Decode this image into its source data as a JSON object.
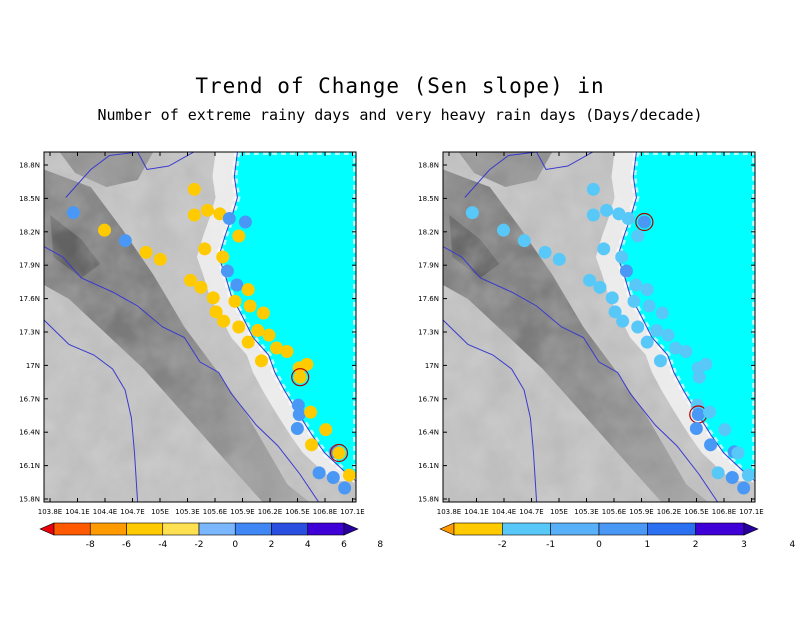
{
  "title": {
    "line1": "Trend of Change (Sen slope) in",
    "line2": "Number of extreme rainy days and very heavy rain days (Days/decade)"
  },
  "axes": {
    "x_ticks": [
      "103.8E",
      "104.1E",
      "104.4E",
      "104.7E",
      "105E",
      "105.3E",
      "105.6E",
      "105.9E",
      "106.2E",
      "106.5E",
      "106.8E",
      "107.1E"
    ],
    "y_ticks": [
      "18.8N",
      "18.5N",
      "18.2N",
      "17.9N",
      "17.6N",
      "17.3N",
      "17N",
      "16.7N",
      "16.4N",
      "16.1N",
      "15.8N"
    ],
    "lon_range": [
      103.8,
      107.1
    ],
    "lat_range": [
      15.8,
      18.8
    ]
  },
  "colors": {
    "sea": "#00ffff",
    "boundary": "#3a3acd",
    "marker_outline": "#b00000"
  },
  "panels": [
    {
      "name": "left",
      "colorbar": {
        "labels": [
          "-8",
          "-6",
          "-4",
          "-2",
          "0",
          "2",
          "4",
          "6",
          "8"
        ],
        "colors": [
          "#e8000b",
          "#ff5a00",
          "#ff9a00",
          "#ffca00",
          "#ffe050",
          "#7ab7ff",
          "#3f87f5",
          "#2a4fe0",
          "#3f00d8",
          "#2800a0"
        ]
      },
      "stations": [
        {
          "lon": 105.39,
          "lat": 18.48,
          "color": "#ffca00"
        },
        {
          "lon": 104.11,
          "lat": 18.28,
          "color": "#4a98f5"
        },
        {
          "lon": 104.44,
          "lat": 18.13,
          "color": "#ffca00"
        },
        {
          "lon": 104.66,
          "lat": 18.04,
          "color": "#4a98f5"
        },
        {
          "lon": 104.88,
          "lat": 17.94,
          "color": "#ffca00"
        },
        {
          "lon": 105.03,
          "lat": 17.88,
          "color": "#ffca00"
        },
        {
          "lon": 105.39,
          "lat": 18.26,
          "color": "#ffca00"
        },
        {
          "lon": 105.53,
          "lat": 18.3,
          "color": "#ffca00"
        },
        {
          "lon": 105.66,
          "lat": 18.27,
          "color": "#ffca00"
        },
        {
          "lon": 105.76,
          "lat": 18.23,
          "color": "#4a98f5"
        },
        {
          "lon": 105.93,
          "lat": 18.2,
          "color": "#4a98f5"
        },
        {
          "lon": 105.86,
          "lat": 18.08,
          "color": "#ffca00"
        },
        {
          "lon": 105.5,
          "lat": 17.97,
          "color": "#ffca00"
        },
        {
          "lon": 105.69,
          "lat": 17.9,
          "color": "#ffca00"
        },
        {
          "lon": 105.74,
          "lat": 17.78,
          "color": "#4a98f5"
        },
        {
          "lon": 105.84,
          "lat": 17.66,
          "color": "#4a98f5"
        },
        {
          "lon": 105.96,
          "lat": 17.62,
          "color": "#ffca00"
        },
        {
          "lon": 105.35,
          "lat": 17.7,
          "color": "#ffca00"
        },
        {
          "lon": 105.46,
          "lat": 17.64,
          "color": "#ffca00"
        },
        {
          "lon": 105.59,
          "lat": 17.55,
          "color": "#ffca00"
        },
        {
          "lon": 105.82,
          "lat": 17.52,
          "color": "#ffca00"
        },
        {
          "lon": 105.98,
          "lat": 17.48,
          "color": "#ffca00"
        },
        {
          "lon": 106.12,
          "lat": 17.42,
          "color": "#ffca00"
        },
        {
          "lon": 105.62,
          "lat": 17.43,
          "color": "#ffca00"
        },
        {
          "lon": 105.7,
          "lat": 17.35,
          "color": "#ffca00"
        },
        {
          "lon": 105.86,
          "lat": 17.3,
          "color": "#ffca00"
        },
        {
          "lon": 106.06,
          "lat": 17.27,
          "color": "#ffca00"
        },
        {
          "lon": 106.18,
          "lat": 17.23,
          "color": "#ffca00"
        },
        {
          "lon": 106.26,
          "lat": 17.12,
          "color": "#ffca00"
        },
        {
          "lon": 106.37,
          "lat": 17.09,
          "color": "#ffca00"
        },
        {
          "lon": 105.96,
          "lat": 17.17,
          "color": "#ffca00"
        },
        {
          "lon": 106.58,
          "lat": 16.98,
          "color": "#ffca00"
        },
        {
          "lon": 106.5,
          "lat": 16.95,
          "color": "#ffca00"
        },
        {
          "lon": 106.1,
          "lat": 17.01,
          "color": "#ffca00"
        },
        {
          "lon": 106.51,
          "lat": 16.87,
          "color": "#ffca00",
          "outline": true
        },
        {
          "lon": 106.49,
          "lat": 16.63,
          "color": "#4a98f5"
        },
        {
          "lon": 106.5,
          "lat": 16.55,
          "color": "#4a98f5"
        },
        {
          "lon": 106.62,
          "lat": 16.57,
          "color": "#ffca00"
        },
        {
          "lon": 106.48,
          "lat": 16.43,
          "color": "#4a98f5"
        },
        {
          "lon": 106.78,
          "lat": 16.42,
          "color": "#ffca00"
        },
        {
          "lon": 106.63,
          "lat": 16.29,
          "color": "#ffca00"
        },
        {
          "lon": 106.88,
          "lat": 16.23,
          "color": "#4a98f5"
        },
        {
          "lon": 106.92,
          "lat": 16.22,
          "color": "#ffca00",
          "outline": true
        },
        {
          "lon": 106.71,
          "lat": 16.05,
          "color": "#4a98f5"
        },
        {
          "lon": 106.86,
          "lat": 16.01,
          "color": "#4a98f5"
        },
        {
          "lon": 107.03,
          "lat": 16.03,
          "color": "#ffca00"
        },
        {
          "lon": 106.98,
          "lat": 15.92,
          "color": "#4a98f5"
        }
      ]
    },
    {
      "name": "right",
      "colorbar": {
        "labels": [
          "-2",
          "-1",
          "0",
          "1",
          "2",
          "3",
          "4"
        ],
        "colors": [
          "#ff9a00",
          "#ffca00",
          "#58c8f8",
          "#58b0f8",
          "#4a98f5",
          "#2a70f0",
          "#3f00d8",
          "#2800a0"
        ]
      },
      "stations": [
        {
          "lon": 105.39,
          "lat": 18.48,
          "color": "#58c8f8"
        },
        {
          "lon": 104.11,
          "lat": 18.28,
          "color": "#58c8f8"
        },
        {
          "lon": 104.44,
          "lat": 18.13,
          "color": "#58c8f8"
        },
        {
          "lon": 104.66,
          "lat": 18.04,
          "color": "#58c8f8"
        },
        {
          "lon": 104.88,
          "lat": 17.94,
          "color": "#58c8f8"
        },
        {
          "lon": 105.03,
          "lat": 17.88,
          "color": "#58c8f8"
        },
        {
          "lon": 105.39,
          "lat": 18.26,
          "color": "#58c8f8"
        },
        {
          "lon": 105.53,
          "lat": 18.3,
          "color": "#58c8f8"
        },
        {
          "lon": 105.66,
          "lat": 18.27,
          "color": "#58c8f8"
        },
        {
          "lon": 105.76,
          "lat": 18.23,
          "color": "#58c8f8"
        },
        {
          "lon": 105.93,
          "lat": 18.2,
          "color": "#4a98f5",
          "outline": true
        },
        {
          "lon": 105.86,
          "lat": 18.08,
          "color": "#58c8f8"
        },
        {
          "lon": 105.5,
          "lat": 17.97,
          "color": "#58c8f8"
        },
        {
          "lon": 105.69,
          "lat": 17.9,
          "color": "#58c8f8"
        },
        {
          "lon": 105.74,
          "lat": 17.78,
          "color": "#4a98f5"
        },
        {
          "lon": 105.84,
          "lat": 17.66,
          "color": "#58c8f8"
        },
        {
          "lon": 105.96,
          "lat": 17.62,
          "color": "#58c8f8"
        },
        {
          "lon": 105.35,
          "lat": 17.7,
          "color": "#58c8f8"
        },
        {
          "lon": 105.46,
          "lat": 17.64,
          "color": "#58c8f8"
        },
        {
          "lon": 105.59,
          "lat": 17.55,
          "color": "#58c8f8"
        },
        {
          "lon": 105.82,
          "lat": 17.52,
          "color": "#58c8f8"
        },
        {
          "lon": 105.98,
          "lat": 17.48,
          "color": "#58c8f8"
        },
        {
          "lon": 106.12,
          "lat": 17.42,
          "color": "#58c8f8"
        },
        {
          "lon": 105.62,
          "lat": 17.43,
          "color": "#58c8f8"
        },
        {
          "lon": 105.7,
          "lat": 17.35,
          "color": "#58c8f8"
        },
        {
          "lon": 105.86,
          "lat": 17.3,
          "color": "#58c8f8"
        },
        {
          "lon": 106.06,
          "lat": 17.27,
          "color": "#58c8f8"
        },
        {
          "lon": 106.18,
          "lat": 17.23,
          "color": "#58c8f8"
        },
        {
          "lon": 106.26,
          "lat": 17.12,
          "color": "#58c8f8"
        },
        {
          "lon": 106.37,
          "lat": 17.09,
          "color": "#58c8f8"
        },
        {
          "lon": 105.96,
          "lat": 17.17,
          "color": "#58c8f8"
        },
        {
          "lon": 106.58,
          "lat": 16.98,
          "color": "#58c8f8"
        },
        {
          "lon": 106.5,
          "lat": 16.95,
          "color": "#58c8f8"
        },
        {
          "lon": 106.1,
          "lat": 17.01,
          "color": "#58c8f8"
        },
        {
          "lon": 106.51,
          "lat": 16.87,
          "color": "#58c8f8"
        },
        {
          "lon": 106.49,
          "lat": 16.63,
          "color": "#58c8f8"
        },
        {
          "lon": 106.5,
          "lat": 16.55,
          "color": "#4a98f5",
          "outline": true
        },
        {
          "lon": 106.62,
          "lat": 16.57,
          "color": "#58c8f8"
        },
        {
          "lon": 106.48,
          "lat": 16.43,
          "color": "#4a98f5"
        },
        {
          "lon": 106.78,
          "lat": 16.42,
          "color": "#58c8f8"
        },
        {
          "lon": 106.63,
          "lat": 16.29,
          "color": "#4a98f5"
        },
        {
          "lon": 106.88,
          "lat": 16.23,
          "color": "#4a98f5"
        },
        {
          "lon": 106.92,
          "lat": 16.22,
          "color": "#58c8f8"
        },
        {
          "lon": 106.71,
          "lat": 16.05,
          "color": "#58c8f8"
        },
        {
          "lon": 106.86,
          "lat": 16.01,
          "color": "#4a98f5"
        },
        {
          "lon": 107.03,
          "lat": 16.03,
          "color": "#58c8f8"
        },
        {
          "lon": 106.98,
          "lat": 15.92,
          "color": "#4a98f5"
        }
      ]
    }
  ]
}
